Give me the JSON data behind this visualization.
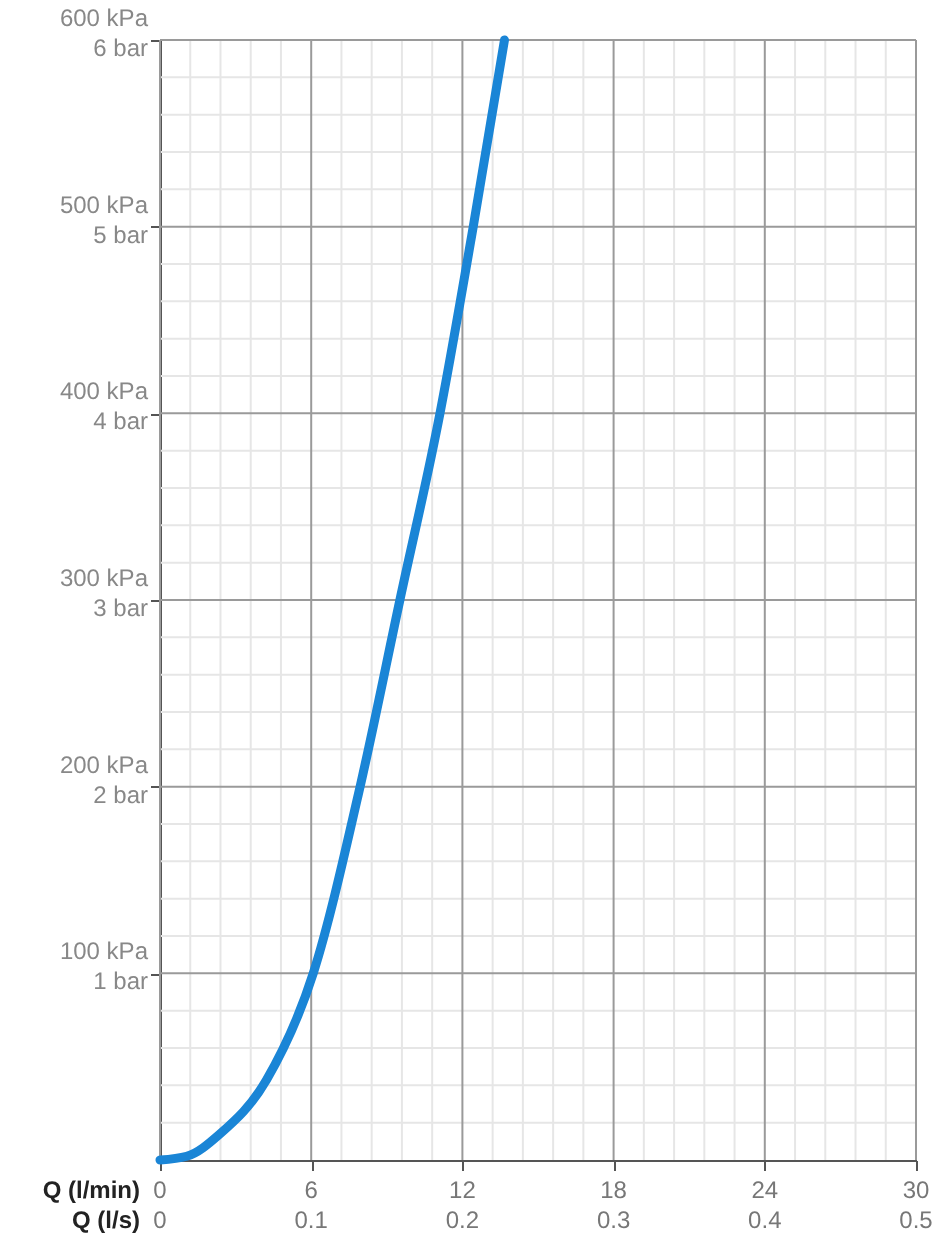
{
  "chart_data": {
    "type": "line",
    "xlabel": "Q (l/min)",
    "x2label": "Q (l/s)",
    "xlim": [
      0,
      30
    ],
    "x2lim": [
      0,
      0.5
    ],
    "ylim": [
      0,
      600
    ],
    "y2lim": [
      0,
      6
    ],
    "xticks": [
      0,
      {
        "value": 1.2,
        "label": null
      },
      {
        "value": 2.4,
        "label": null
      },
      {
        "value": 3.6,
        "label": null
      },
      {
        "value": 4.8,
        "label": null
      },
      6,
      {
        "value": 7.2,
        "label": null
      },
      {
        "value": 8.4,
        "label": null
      },
      {
        "value": 9.6,
        "label": null
      },
      {
        "value": 10.8,
        "label": null
      },
      12,
      {
        "value": 13.2,
        "label": null
      },
      {
        "value": 14.4,
        "label": null
      },
      {
        "value": 15.6,
        "label": null
      },
      {
        "value": 16.8,
        "label": null
      },
      18,
      {
        "value": 19.2,
        "label": null
      },
      {
        "value": 20.4,
        "label": null
      },
      {
        "value": 21.6,
        "label": null
      },
      {
        "value": 22.8,
        "label": null
      },
      24,
      {
        "value": 25.2,
        "label": null
      },
      {
        "value": 26.4,
        "label": null
      },
      {
        "value": 27.6,
        "label": null
      },
      {
        "value": 28.8,
        "label": null
      },
      30
    ],
    "x2ticks": [
      0,
      0.1,
      0.2,
      0.3,
      0.4,
      0.5
    ],
    "yticks": [
      {
        "value": 20,
        "label": null
      },
      {
        "value": 40,
        "label": null
      },
      {
        "value": 60,
        "label": null
      },
      {
        "value": 80,
        "label": null
      },
      {
        "value": 100,
        "label": "100 kPa"
      },
      {
        "value": 120,
        "label": null
      },
      {
        "value": 140,
        "label": null
      },
      {
        "value": 160,
        "label": null
      },
      {
        "value": 180,
        "label": null
      },
      {
        "value": 200,
        "label": "200 kPa"
      },
      {
        "value": 220,
        "label": null
      },
      {
        "value": 240,
        "label": null
      },
      {
        "value": 260,
        "label": null
      },
      {
        "value": 280,
        "label": null
      },
      {
        "value": 300,
        "label": "300 kPa"
      },
      {
        "value": 320,
        "label": null
      },
      {
        "value": 340,
        "label": null
      },
      {
        "value": 360,
        "label": null
      },
      {
        "value": 380,
        "label": null
      },
      {
        "value": 400,
        "label": "400 kPa"
      },
      {
        "value": 420,
        "label": null
      },
      {
        "value": 440,
        "label": null
      },
      {
        "value": 460,
        "label": null
      },
      {
        "value": 480,
        "label": null
      },
      {
        "value": 500,
        "label": "500 kPa"
      },
      {
        "value": 520,
        "label": null
      },
      {
        "value": 540,
        "label": null
      },
      {
        "value": 560,
        "label": null
      },
      {
        "value": 580,
        "label": null
      },
      {
        "value": 600,
        "label": "600 kPa"
      }
    ],
    "y2ticks": [
      {
        "value": 1,
        "label": "1 bar"
      },
      {
        "value": 2,
        "label": "2 bar"
      },
      {
        "value": 3,
        "label": "3 bar"
      },
      {
        "value": 4,
        "label": "4 bar"
      },
      {
        "value": 5,
        "label": "5 bar"
      },
      {
        "value": 6,
        "label": "6 bar"
      }
    ],
    "grid": true,
    "marker": "none",
    "line_style": "solid",
    "x": [
      0,
      1.06,
      2.38,
      4.23,
      6.08,
      7.94,
      9.52,
      11.11,
      12.43,
      13.67
    ],
    "series": [
      {
        "color": "#1a85d6",
        "values": [
          0,
          2,
          14,
          43,
          100,
          200,
          300,
          400,
          500,
          600
        ]
      }
    ]
  }
}
